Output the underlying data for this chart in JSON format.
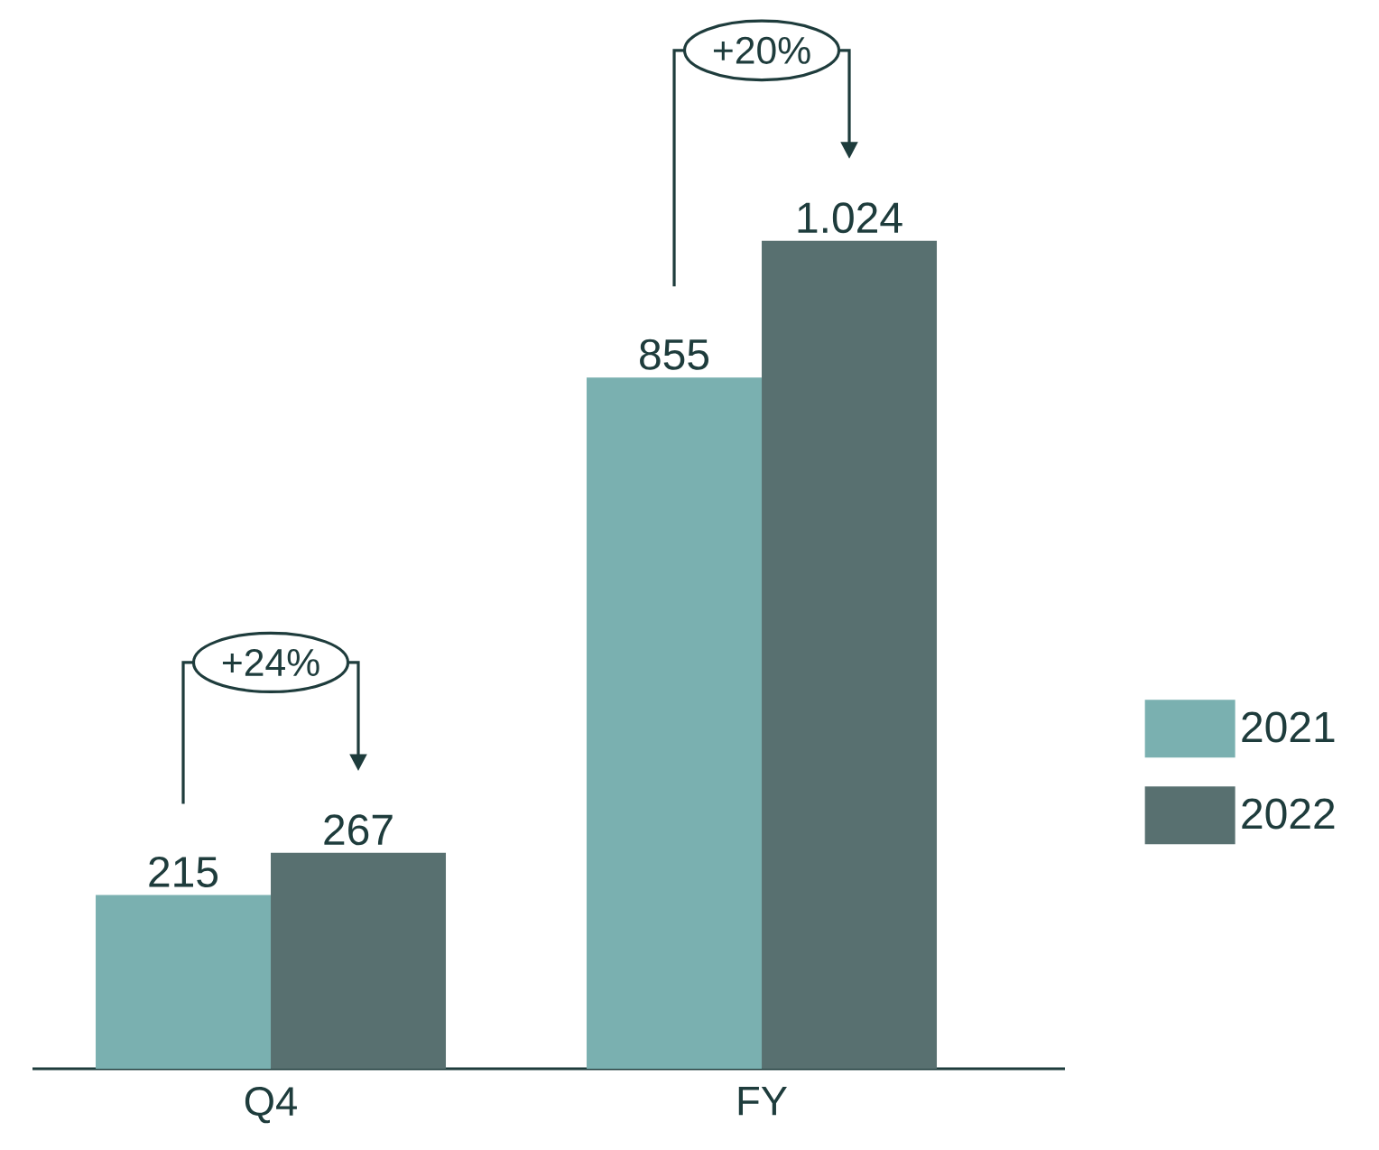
{
  "chart_data": {
    "type": "bar",
    "categories": [
      "Q4",
      "FY"
    ],
    "series": [
      {
        "name": "2021",
        "color": "#7ab0b0",
        "values": [
          215,
          855
        ],
        "value_labels": [
          "215",
          "855"
        ]
      },
      {
        "name": "2022",
        "color": "#587070",
        "values": [
          267,
          1024
        ],
        "value_labels": [
          "267",
          "1.024"
        ]
      }
    ],
    "annotations": [
      "+24%",
      "+20%"
    ],
    "legend": "right",
    "tick_labels": "x"
  }
}
